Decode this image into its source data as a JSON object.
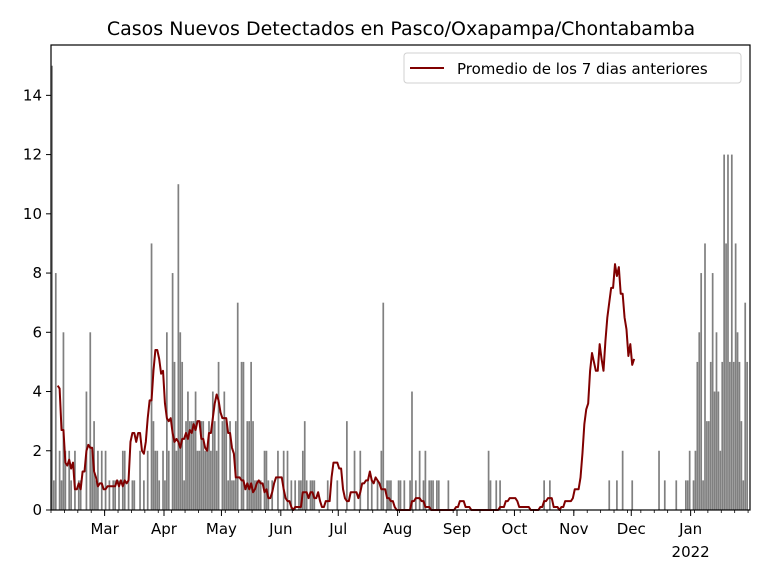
{
  "chart_data": {
    "type": "bar",
    "title": "Casos Nuevos Detectados en Pasco/Oxapampa/Chontabamba",
    "xlabel": "",
    "ylabel": "",
    "ylim": [
      0,
      15.7
    ],
    "yticks": [
      0,
      2,
      4,
      6,
      8,
      10,
      12,
      14
    ],
    "x_start": "2021-02-01",
    "x_end": "2022-01-31",
    "xticks": [
      {
        "date": "2021-03-01",
        "label": "Mar",
        "sublabel": ""
      },
      {
        "date": "2021-04-01",
        "label": "Apr",
        "sublabel": ""
      },
      {
        "date": "2021-05-01",
        "label": "May",
        "sublabel": ""
      },
      {
        "date": "2021-06-01",
        "label": "Jun",
        "sublabel": ""
      },
      {
        "date": "2021-07-01",
        "label": "Jul",
        "sublabel": ""
      },
      {
        "date": "2021-08-01",
        "label": "Aug",
        "sublabel": ""
      },
      {
        "date": "2021-09-01",
        "label": "Sep",
        "sublabel": ""
      },
      {
        "date": "2021-10-01",
        "label": "Oct",
        "sublabel": ""
      },
      {
        "date": "2021-11-01",
        "label": "Nov",
        "sublabel": ""
      },
      {
        "date": "2021-12-01",
        "label": "Dec",
        "sublabel": ""
      },
      {
        "date": "2022-01-01",
        "label": "Jan",
        "sublabel": "2022"
      }
    ],
    "bar_color": "#808080",
    "line_color": "#800000",
    "legend_position": "top-right",
    "series": [
      {
        "name": "",
        "kind": "bar",
        "values": [
          15,
          1,
          8,
          0,
          2,
          1,
          6,
          2,
          0,
          2,
          1,
          0,
          2,
          0,
          1,
          1,
          0,
          0,
          4,
          0,
          6,
          2,
          3,
          1,
          2,
          0,
          2,
          0,
          2,
          0,
          1,
          0,
          1,
          1,
          0,
          1,
          0,
          2,
          2,
          0,
          1,
          0,
          1,
          1,
          0,
          0,
          2,
          0,
          1,
          0,
          2,
          0,
          9,
          3,
          2,
          2,
          1,
          0,
          2,
          1,
          6,
          2,
          0,
          8,
          5,
          2,
          11,
          6,
          5,
          1,
          3,
          4,
          3,
          3,
          3,
          4,
          2,
          2,
          3,
          3,
          2,
          2,
          3,
          2,
          4,
          3,
          2,
          5,
          0,
          3,
          4,
          3,
          1,
          3,
          1,
          1,
          3,
          7,
          0,
          5,
          5,
          0,
          3,
          3,
          5,
          3,
          1,
          1,
          1,
          1,
          0,
          2,
          2,
          1,
          0,
          1,
          0,
          0,
          2,
          0,
          0,
          2,
          0,
          2,
          0,
          1,
          0,
          1,
          0,
          1,
          1,
          2,
          3,
          1,
          0,
          1,
          1,
          1,
          0,
          0,
          0,
          0,
          0,
          0,
          1,
          0,
          0,
          0,
          0,
          1,
          0,
          0,
          0,
          0,
          3,
          0,
          0,
          0,
          2,
          0,
          0,
          2,
          0,
          0,
          0,
          1,
          0,
          1,
          0,
          0,
          1,
          0,
          2,
          7,
          0,
          1,
          1,
          1,
          0,
          0,
          0,
          1,
          1,
          0,
          1,
          0,
          0,
          1,
          4,
          0,
          1,
          0,
          2,
          0,
          1,
          2,
          0,
          1,
          1,
          1,
          0,
          1,
          1,
          0,
          0,
          0,
          0,
          1,
          0,
          0,
          0,
          0,
          0,
          0,
          0,
          0,
          0,
          0,
          0,
          0,
          0,
          0,
          0,
          0,
          0,
          0,
          0,
          0,
          2,
          1,
          0,
          0,
          1,
          0,
          1,
          0,
          0,
          0,
          0,
          0,
          0,
          0,
          0,
          0,
          0,
          0,
          0,
          0,
          0,
          0,
          0,
          0,
          0,
          0,
          0,
          0,
          0,
          1,
          0,
          0,
          1,
          0,
          0,
          0,
          0,
          0,
          0,
          0,
          0,
          0,
          0,
          0,
          0,
          0,
          0,
          0,
          0,
          0,
          0,
          0,
          0,
          0,
          0,
          0,
          0,
          0,
          0,
          0,
          0,
          0,
          0,
          1,
          0,
          0,
          0,
          1,
          0,
          0,
          2,
          0,
          0,
          0,
          0,
          1,
          0,
          0,
          0,
          0,
          0,
          0,
          0,
          0,
          0,
          0,
          0,
          0,
          0,
          2,
          0,
          0,
          1,
          0,
          0,
          0,
          0,
          0,
          1,
          0,
          0,
          0,
          0,
          1,
          1,
          2,
          0,
          1,
          2,
          5,
          6,
          8,
          1,
          9,
          3,
          3,
          5,
          8,
          4,
          6,
          4,
          2,
          5,
          12,
          9,
          12,
          5,
          12,
          5,
          9,
          6,
          5,
          3,
          1,
          7,
          5
        ]
      },
      {
        "name": "Promedio de los 7 dias anteriores",
        "kind": "line",
        "start_index": 3,
        "values": [
          4.2,
          4.1,
          2.7,
          2.7,
          1.6,
          1.5,
          1.7,
          1.4,
          1.6,
          0.7,
          0.7,
          0.9,
          0.7,
          1.3,
          1.3,
          2.0,
          2.2,
          2.1,
          2.1,
          1.3,
          1.1,
          0.8,
          0.9,
          0.9,
          0.7,
          0.7,
          0.8,
          0.8,
          0.8,
          0.8,
          0.8,
          1.0,
          0.8,
          1.0,
          0.8,
          1.0,
          0.9,
          1.0,
          2.3,
          2.6,
          2.6,
          2.3,
          2.6,
          2.6,
          2.0,
          1.9,
          2.3,
          3.1,
          3.7,
          3.7,
          4.7,
          5.4,
          5.4,
          5.1,
          4.6,
          4.7,
          3.6,
          3.1,
          3.0,
          3.1,
          2.6,
          2.3,
          2.4,
          2.3,
          2.1,
          2.4,
          2.4,
          2.6,
          2.4,
          2.7,
          2.6,
          2.9,
          2.7,
          3.0,
          3.0,
          2.4,
          2.4,
          2.1,
          2.0,
          2.6,
          2.6,
          3.1,
          3.6,
          3.9,
          3.7,
          3.3,
          3.1,
          3.1,
          3.1,
          2.6,
          2.6,
          2.1,
          1.9,
          1.1,
          1.1,
          1.1,
          1.0,
          1.0,
          0.7,
          0.9,
          0.7,
          0.9,
          0.6,
          0.7,
          0.9,
          1.0,
          0.9,
          0.9,
          0.6,
          0.7,
          0.4,
          0.4,
          0.6,
          0.9,
          1.1,
          1.1,
          1.1,
          1.1,
          0.7,
          0.4,
          0.3,
          0.3,
          0.1,
          0.0,
          0.1,
          0.1,
          0.1,
          0.1,
          0.6,
          0.6,
          0.6,
          0.4,
          0.6,
          0.6,
          0.4,
          0.4,
          0.6,
          0.3,
          0.1,
          0.1,
          0.3,
          0.3,
          0.3,
          1.1,
          1.6,
          1.6,
          1.6,
          1.4,
          1.4,
          0.7,
          0.4,
          0.3,
          0.3,
          0.6,
          0.6,
          0.6,
          0.6,
          0.4,
          0.6,
          0.9,
          0.9,
          1.0,
          1.0,
          1.3,
          1.0,
          0.9,
          1.1,
          1.0,
          0.9,
          0.7,
          0.7,
          0.7,
          0.4,
          0.4,
          0.3,
          0.3,
          0.1,
          0.0,
          0.0,
          0.0,
          0.0,
          0.0,
          0.0,
          0.0,
          0.0,
          0.3,
          0.3,
          0.4,
          0.4,
          0.4,
          0.3,
          0.3,
          0.1,
          0.1,
          0.1,
          0.0,
          0.0,
          0.0,
          0.0,
          0.0,
          0.0,
          0.0,
          0.0,
          0.0,
          0.0,
          0.0,
          0.0,
          0.0,
          0.1,
          0.1,
          0.3,
          0.3,
          0.3,
          0.1,
          0.1,
          0.1,
          0.0,
          0.0,
          0.0,
          0.0,
          0.0,
          0.0,
          0.0,
          0.0,
          0.0,
          0.0,
          0.0,
          0.0,
          0.0,
          0.0,
          0.0,
          0.1,
          0.1,
          0.1,
          0.3,
          0.3,
          0.4,
          0.4,
          0.4,
          0.4,
          0.3,
          0.1,
          0.1,
          0.1,
          0.1,
          0.1,
          0.1,
          0.0,
          0.0,
          0.0,
          0.0,
          0.0,
          0.1,
          0.1,
          0.3,
          0.3,
          0.4,
          0.4,
          0.4,
          0.1,
          0.1,
          0.1,
          0.0,
          0.1,
          0.1,
          0.3,
          0.3,
          0.3,
          0.3,
          0.4,
          0.7,
          0.7,
          0.7,
          1.1,
          1.9,
          2.9,
          3.4,
          3.6,
          4.7,
          5.3,
          5.0,
          4.7,
          4.7,
          5.6,
          5.1,
          4.7,
          5.7,
          6.5,
          7.0,
          7.5,
          7.5,
          8.3,
          7.9,
          8.2,
          7.3,
          7.3,
          6.5,
          6.1,
          5.2,
          5.6,
          4.9,
          5.1
        ]
      }
    ]
  }
}
